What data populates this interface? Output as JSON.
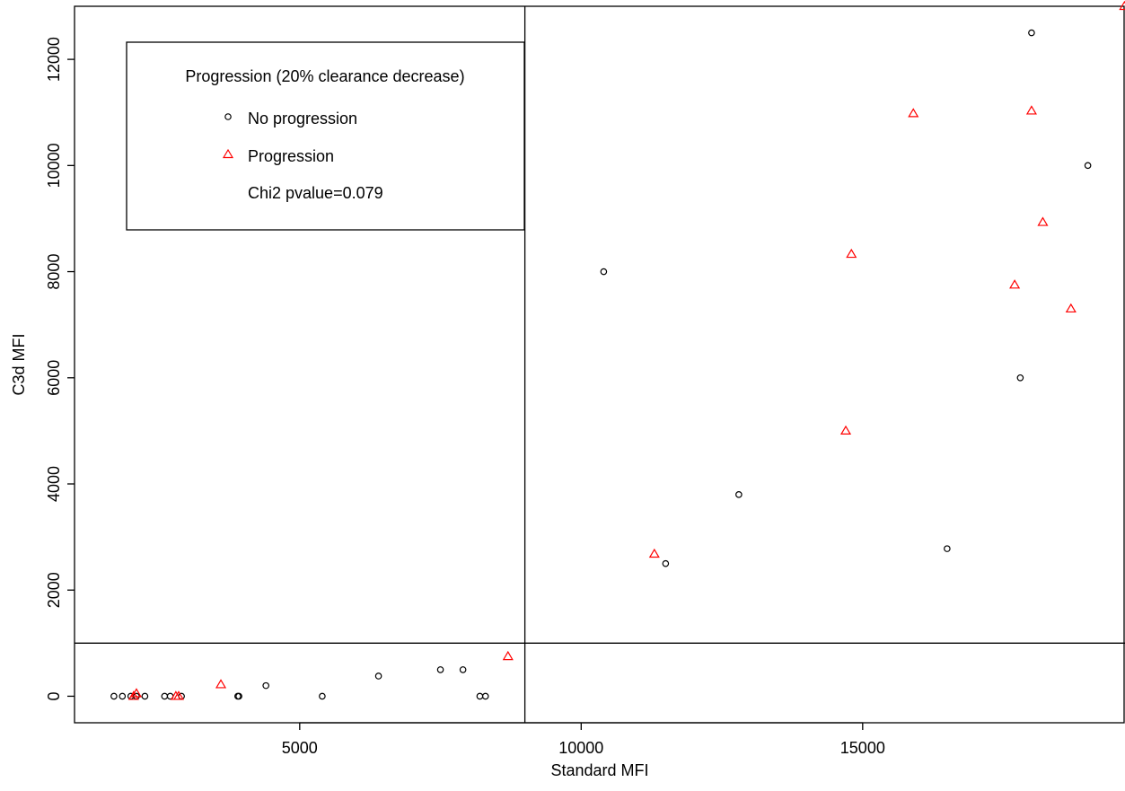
{
  "chart_data": {
    "type": "scatter",
    "title": "",
    "xlabel": "Standard MFI",
    "ylabel": "C3d MFI",
    "xlim": [
      1000,
      19660
    ],
    "ylim": [
      -500,
      13000
    ],
    "x_ticks": [
      5000,
      10000,
      15000
    ],
    "x_tick_labels": [
      "5000",
      "10000",
      "15000"
    ],
    "y_ticks": [
      0,
      2000,
      4000,
      6000,
      8000,
      10000,
      12000
    ],
    "y_tick_labels": [
      "0",
      "2000",
      "4000",
      "6000",
      "8000",
      "10000",
      "12000"
    ],
    "grid": false,
    "reference_lines": {
      "vertical_x": 9000,
      "horizontal_y": 1000
    },
    "legend": {
      "position": "top-left",
      "title": "Progression (20% clearance decrease)",
      "entries": [
        {
          "label": "No progression",
          "marker": "circle",
          "color": "#000000"
        },
        {
          "label": "Progression",
          "marker": "triangle",
          "color": "#ff0000"
        }
      ],
      "annotation": "Chi2 pvalue=0.079"
    },
    "series": [
      {
        "name": "No progression",
        "marker": "circle",
        "color": "#000000",
        "points": [
          [
            1700,
            0
          ],
          [
            1850,
            0
          ],
          [
            2000,
            0
          ],
          [
            2100,
            0
          ],
          [
            2250,
            0
          ],
          [
            2600,
            0
          ],
          [
            2700,
            0
          ],
          [
            2900,
            0
          ],
          [
            3900,
            0
          ],
          [
            3920,
            0
          ],
          [
            4400,
            200
          ],
          [
            5400,
            0
          ],
          [
            6400,
            380
          ],
          [
            7500,
            500
          ],
          [
            7900,
            500
          ],
          [
            8200,
            0
          ],
          [
            8300,
            0
          ],
          [
            10400,
            8000
          ],
          [
            11500,
            2500
          ],
          [
            12800,
            3800
          ],
          [
            16500,
            2780
          ],
          [
            17800,
            6000
          ],
          [
            18000,
            12500
          ],
          [
            19000,
            10000
          ]
        ]
      },
      {
        "name": "Progression",
        "marker": "triangle",
        "color": "#ff0000",
        "points": [
          [
            2050,
            0
          ],
          [
            2100,
            50
          ],
          [
            2800,
            0
          ],
          [
            2850,
            0
          ],
          [
            3600,
            220
          ],
          [
            8700,
            750
          ],
          [
            11300,
            2680
          ],
          [
            14700,
            5000
          ],
          [
            14800,
            8330
          ],
          [
            15900,
            10980
          ],
          [
            17700,
            7750
          ],
          [
            18000,
            11030
          ],
          [
            18200,
            8930
          ],
          [
            18700,
            7300
          ],
          [
            19650,
            13000
          ]
        ]
      }
    ]
  }
}
